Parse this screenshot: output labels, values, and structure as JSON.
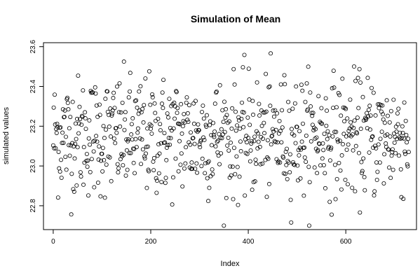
{
  "chart_data": {
    "type": "scatter",
    "title": "Simulation of Mean",
    "xlabel": "Index",
    "ylabel": "simulated values",
    "xlim": [
      -20,
      745
    ],
    "ylim": [
      22.68,
      23.62
    ],
    "x_ticks": [
      0,
      200,
      400,
      600
    ],
    "y_ticks": [
      22.8,
      23.0,
      23.2,
      23.4,
      23.6
    ],
    "x_tick_labels": [
      "0",
      "200",
      "400",
      "600"
    ],
    "y_tick_labels": [
      "22.8",
      "23.0",
      "23.2",
      "23.4",
      "23.6"
    ],
    "n_points": 730,
    "mean": 23.15,
    "sd": 0.15,
    "min": 22.7,
    "max": 23.6,
    "marker": "open-circle",
    "color": "#000000",
    "grid": false,
    "legend": false
  }
}
